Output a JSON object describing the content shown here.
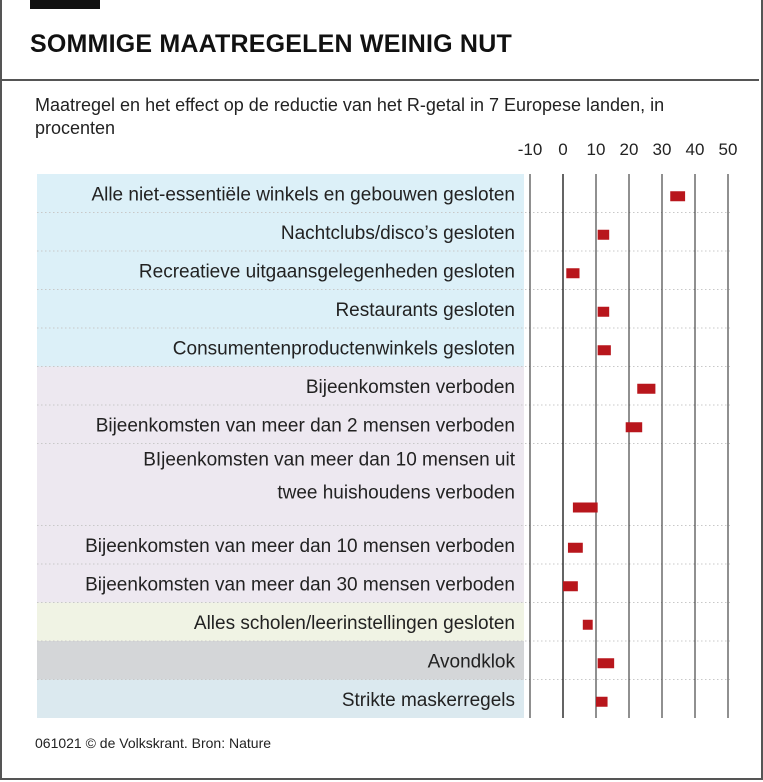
{
  "header": {
    "title": "SOMMIGE MAATREGELEN WEINIG NUT",
    "subtitle": "Maatregel en het effect op de reductie van het R-getal in 7 Europese  landen, in procenten"
  },
  "footer": {
    "source": "061021 © de Volkskrant. Bron: Nature"
  },
  "chart_data": {
    "type": "bar",
    "title": "SOMMIGE MAATREGELEN WEINIG NUT",
    "subtitle": "Maatregel en het effect op de reductie van het R-getal in 7 Europese  landen, in procenten",
    "xlim": [
      -10,
      50
    ],
    "xticks": [
      -10,
      0,
      10,
      20,
      30,
      40,
      50
    ],
    "grid": true,
    "categories": [
      "Alle niet-essentiële winkels en gebouwen gesloten",
      "Nachtclubs/disco’s gesloten",
      "Recreatieve uitgaansgelegenheden gesloten",
      "Restaurants gesloten",
      "Consumentenproductenwinkels gesloten",
      "Bijeenkomsten verboden",
      "Bijeenkomsten van meer dan 2 mensen verboden",
      "BIjeenkomsten van meer dan 10 mensen uit twee huishoudens verboden",
      "Bijeenkomsten van meer dan 10 mensen verboden",
      "Bijeenkomsten van meer dan 30 mensen verboden",
      "Alles scholen/leerinstellingen gesloten",
      "Avondklok",
      "Strikte maskerregels"
    ],
    "label_lines": [
      [
        "Alle niet-essentiële winkels en gebouwen gesloten"
      ],
      [
        "Nachtclubs/disco’s gesloten"
      ],
      [
        "Recreatieve uitgaansgelegenheden gesloten"
      ],
      [
        "Restaurants gesloten"
      ],
      [
        "Consumentenproductenwinkels gesloten"
      ],
      [
        "Bijeenkomsten verboden"
      ],
      [
        "Bijeenkomsten van meer dan 2 mensen verboden"
      ],
      [
        "BIjeenkomsten van meer dan 10 mensen uit ",
        "twee huishoudens verboden"
      ],
      [
        "Bijeenkomsten van meer dan 10 mensen verboden"
      ],
      [
        "Bijeenkomsten van meer dan 30 mensen verboden"
      ],
      [
        "Alles scholen/leerinstellingen gesloten"
      ],
      [
        "Avondklok"
      ],
      [
        "Strikte maskerregels"
      ]
    ],
    "ranges": [
      [
        32.5,
        37
      ],
      [
        10.5,
        14
      ],
      [
        1,
        5
      ],
      [
        10.5,
        14
      ],
      [
        10.5,
        14.5
      ],
      [
        22.5,
        28
      ],
      [
        19,
        24
      ],
      [
        3,
        10.5
      ],
      [
        1.5,
        6
      ],
      [
        0,
        4.5
      ],
      [
        6,
        9
      ],
      [
        10.5,
        15.5
      ],
      [
        10,
        13.5
      ]
    ],
    "row_groups": [
      "shops",
      "shops",
      "shops",
      "shops",
      "shops",
      "gatherings",
      "gatherings",
      "gatherings",
      "gatherings",
      "gatherings",
      "schools",
      "curfew",
      "masks"
    ],
    "group_colors": {
      "shops": "#dcf0f8",
      "gatherings": "#ede8f0",
      "schools": "#f0f3e4",
      "curfew": "#d4d6d8",
      "masks": "#dbe9ef"
    },
    "bar_color": "#b8161c",
    "gridline_color": "#222222",
    "zero_line_color": "#222222"
  }
}
